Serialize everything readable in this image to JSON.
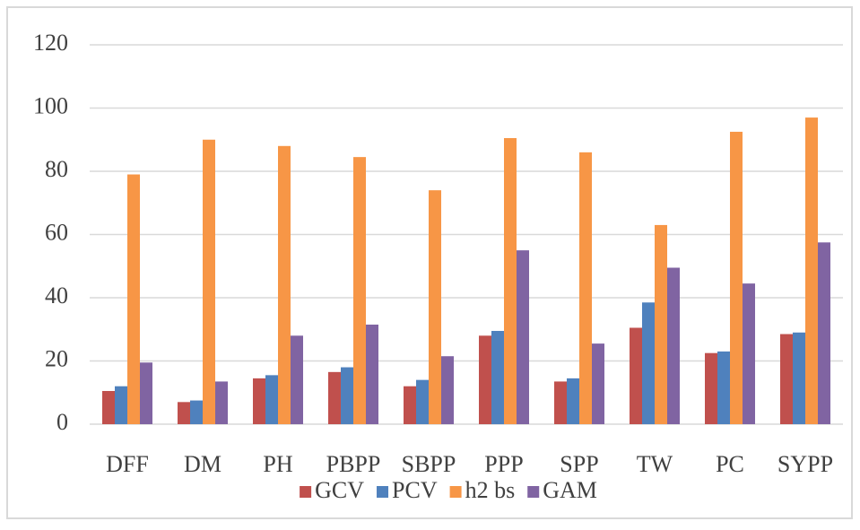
{
  "chart_data": {
    "type": "bar",
    "categories": [
      "DFF",
      "DM",
      "PH",
      "PBPP",
      "SBPP",
      "PPP",
      "SPP",
      "TW",
      "PC",
      "SYPP"
    ],
    "series": [
      {
        "name": "GCV",
        "color": "#c0504d",
        "values": [
          10.5,
          7,
          14.5,
          16.5,
          12,
          28,
          13.5,
          30.5,
          22.5,
          28.5
        ]
      },
      {
        "name": "PCV",
        "color": "#4f81bd",
        "values": [
          12,
          7.5,
          15.5,
          18,
          14,
          29.5,
          14.5,
          38.5,
          23,
          29
        ]
      },
      {
        "name": "h2 bs",
        "color": "#f79646",
        "values": [
          79,
          90,
          88,
          84.5,
          74,
          90.5,
          86,
          63,
          92.5,
          97
        ]
      },
      {
        "name": "GAM",
        "color": "#8064a2",
        "values": [
          19.5,
          13.5,
          28,
          31.5,
          21.5,
          55,
          25.5,
          49.5,
          44.5,
          57.5
        ]
      }
    ],
    "ylim": [
      0,
      120
    ],
    "yticks": [
      0,
      20,
      40,
      60,
      80,
      100,
      120
    ],
    "grid": true,
    "legend": "bottom"
  }
}
